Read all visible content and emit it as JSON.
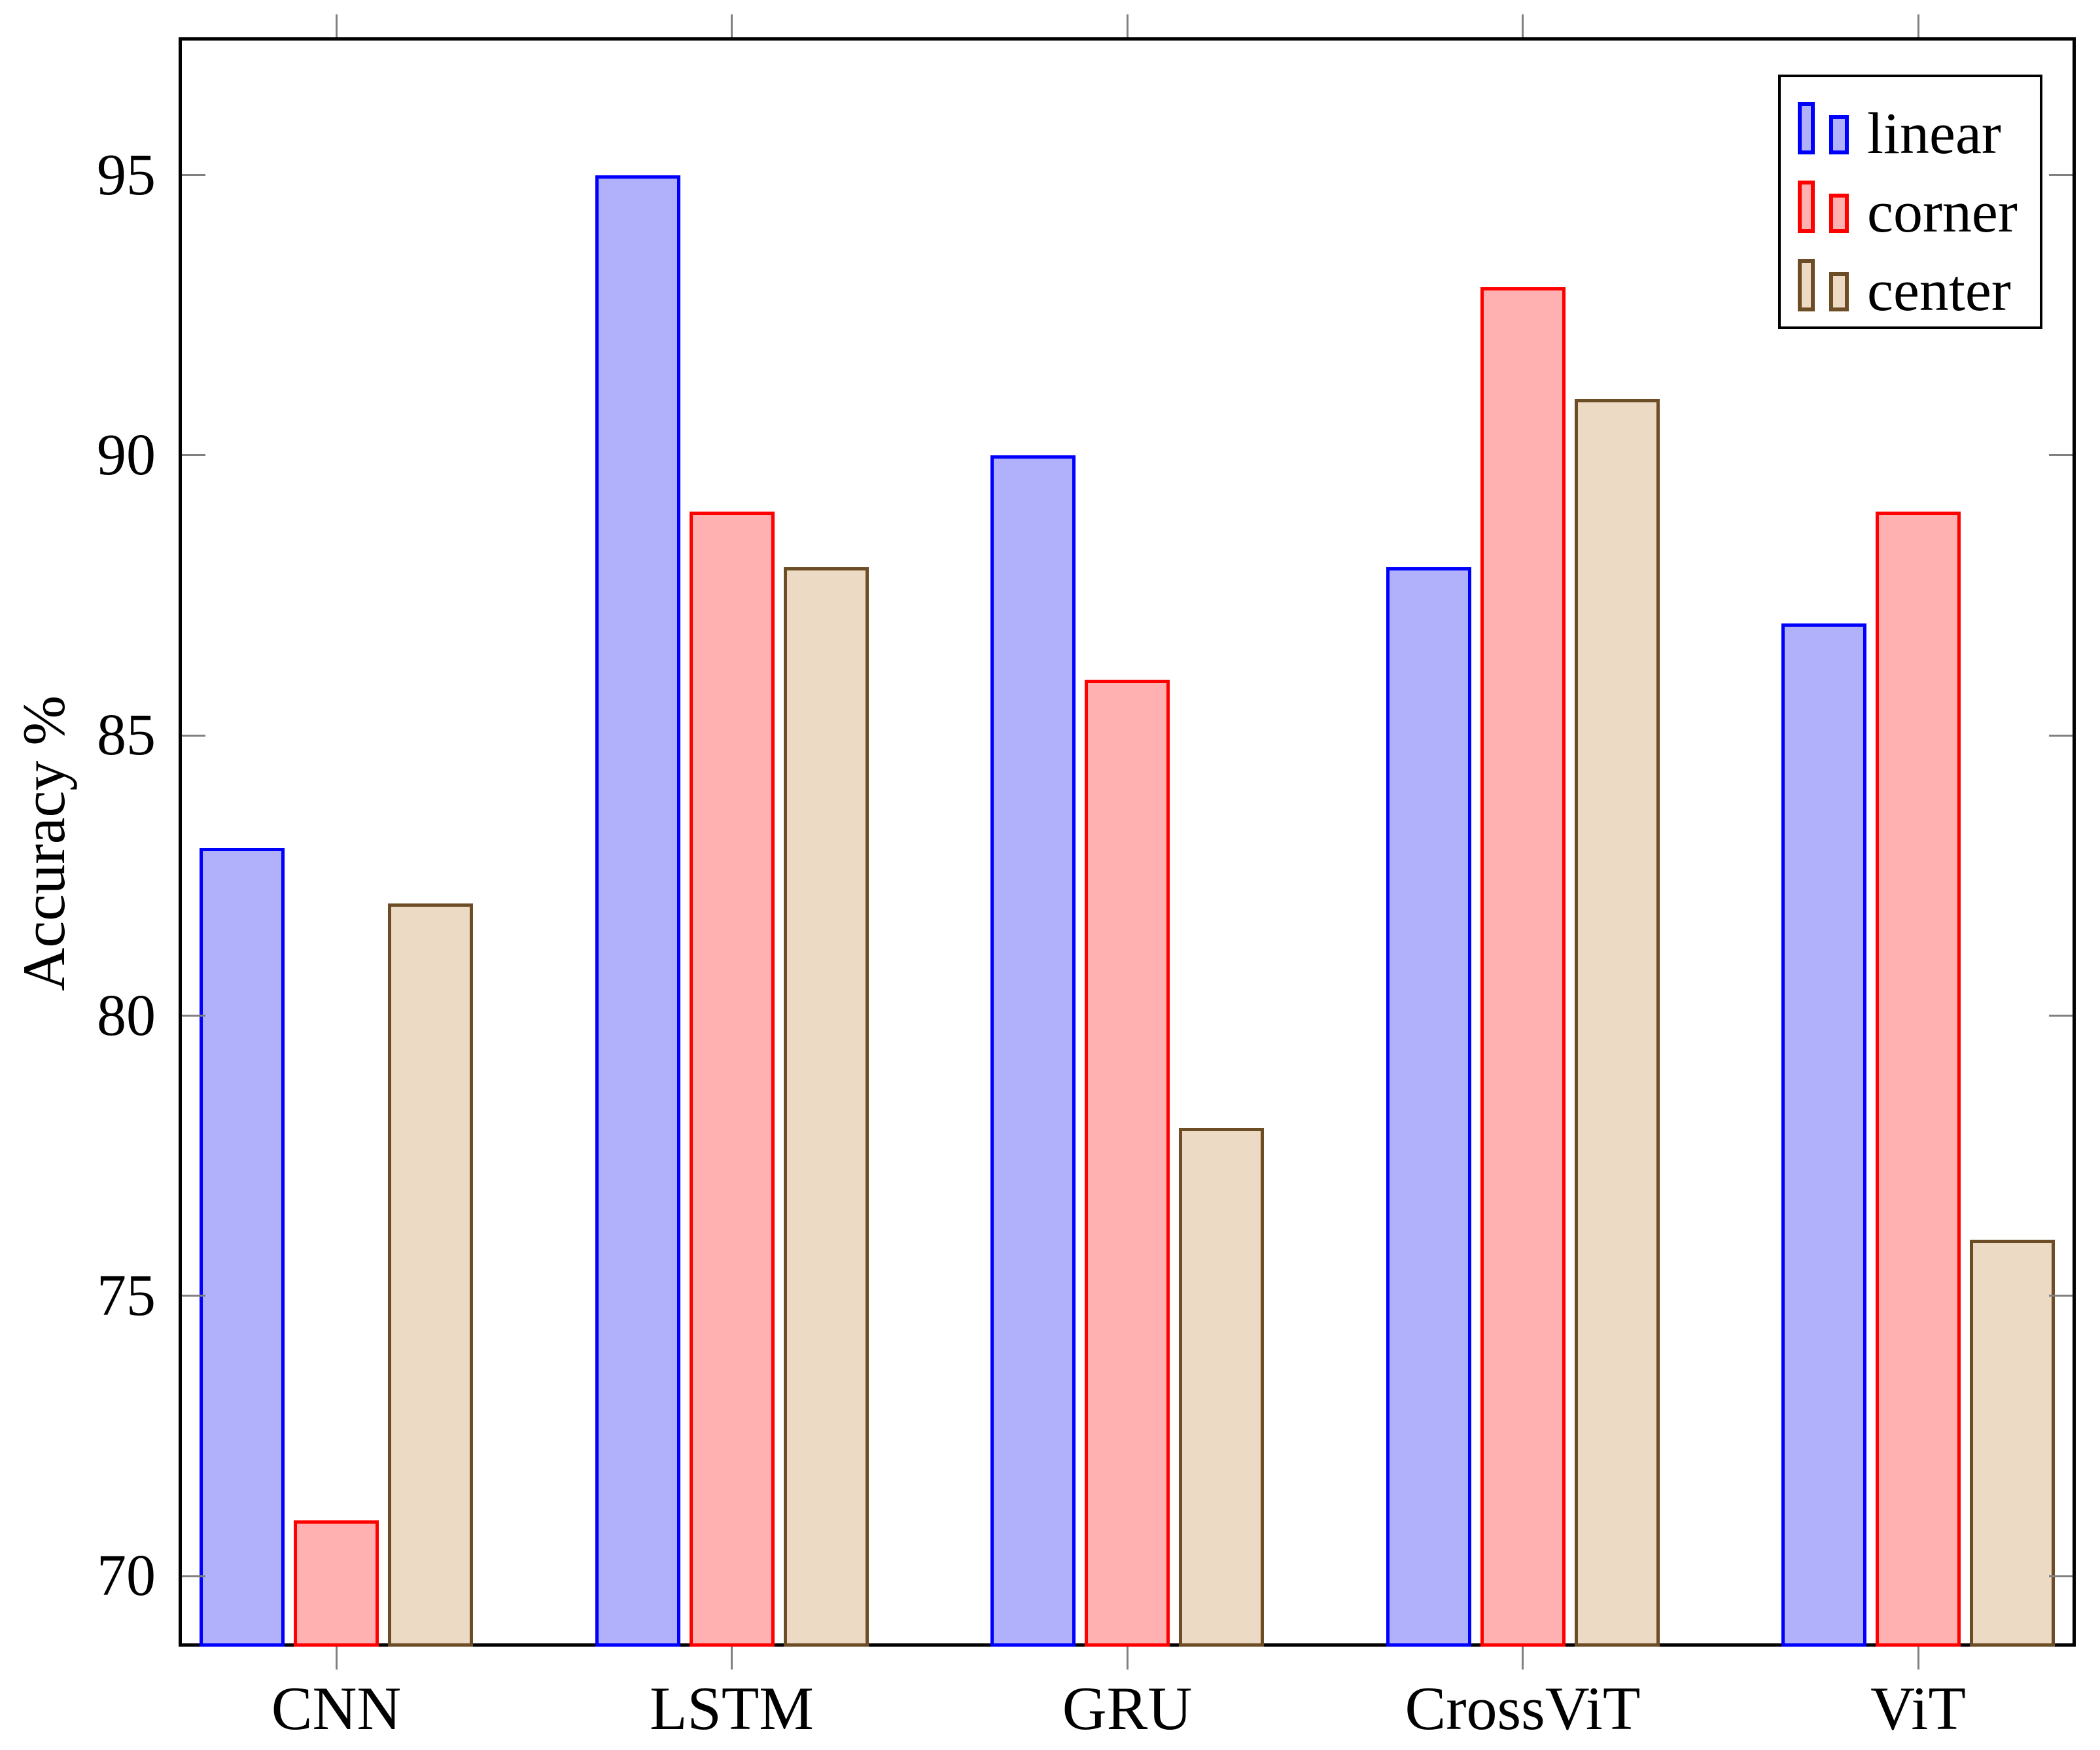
{
  "figure": {
    "background": "#ffffff"
  },
  "y_axis": {
    "title": "Accuracy %"
  },
  "series_styles": [
    {
      "name": "linear",
      "fill": "#b1b1fb",
      "stroke": "#0000ff"
    },
    {
      "name": "corner",
      "fill": "#ffb1b1",
      "stroke": "#ff0000"
    },
    {
      "name": "center",
      "fill": "#ecdac5",
      "stroke": "#6d4d25"
    }
  ],
  "axis_colors": {
    "spine": "#000000",
    "tick": "#808080",
    "text": "#000000"
  },
  "legend": {
    "position": "top-right",
    "entries": [
      "linear",
      "corner",
      "center"
    ]
  },
  "chart_data": {
    "type": "bar",
    "categories": [
      "CNN",
      "LSTM",
      "GRU",
      "CrossViT",
      "ViT"
    ],
    "series": [
      {
        "name": "linear",
        "values": [
          83,
          95,
          90,
          88,
          87
        ]
      },
      {
        "name": "corner",
        "values": [
          71,
          89,
          86,
          93,
          89
        ]
      },
      {
        "name": "center",
        "values": [
          82,
          88,
          78,
          91,
          76
        ]
      }
    ],
    "title": "",
    "xlabel": "",
    "ylabel": "Accuracy %",
    "yticks": [
      70,
      75,
      80,
      85,
      90,
      95
    ],
    "ylim": [
      68.8,
      97.4
    ],
    "grid": false,
    "legend_position": "top-right"
  }
}
